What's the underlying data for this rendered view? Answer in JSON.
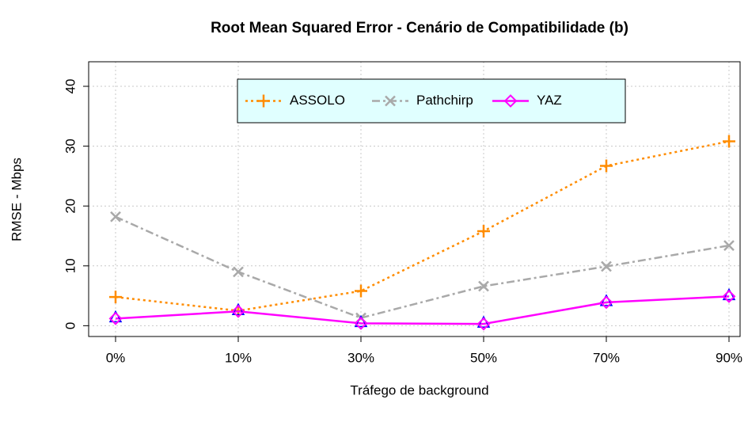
{
  "chart_data": {
    "type": "line",
    "title": "Root Mean Squared Error - Cenário de Compatibilidade (b)",
    "xlabel": "Tráfego de background",
    "ylabel": "RMSE - Mbps",
    "categories": [
      "0%",
      "10%",
      "30%",
      "50%",
      "70%",
      "90%"
    ],
    "series": [
      {
        "name": "ASSOLO",
        "color": "#ff8c00",
        "values": [
          4.8,
          2.5,
          5.8,
          15.8,
          26.7,
          30.8
        ]
      },
      {
        "name": "Pathchirp",
        "color": "#a9a9a9",
        "values": [
          18.2,
          9.0,
          1.3,
          6.6,
          9.9,
          13.4
        ]
      },
      {
        "name": "YAZ",
        "color": "#ff00ff",
        "values": [
          1.2,
          2.4,
          0.4,
          0.3,
          3.9,
          4.9
        ]
      }
    ],
    "ylim": [
      -1.8,
      44.1
    ],
    "yticks": [
      0,
      10,
      20,
      30,
      40
    ],
    "grid": true,
    "legend": "top"
  }
}
